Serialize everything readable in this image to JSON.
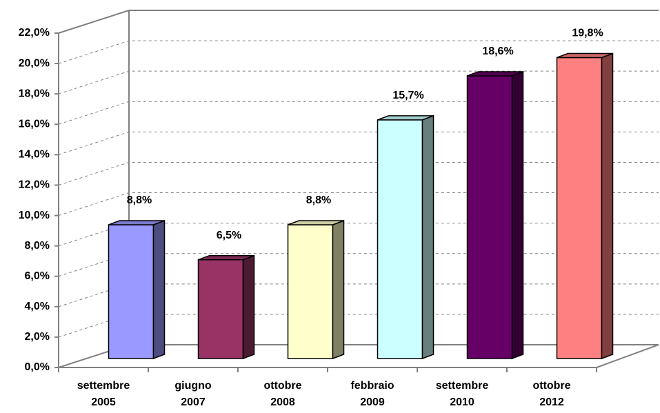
{
  "chart_data": {
    "type": "bar3d",
    "categories": [
      "settembre 2005",
      "giugno 2007",
      "ottobre 2008",
      "febbraio 2009",
      "settembre 2010",
      "ottobre 2012"
    ],
    "values": [
      8.8,
      6.5,
      8.8,
      15.7,
      18.6,
      19.8
    ],
    "value_labels": [
      "8,8%",
      "6,5%",
      "8,8%",
      "15,7%",
      "18,6%",
      "19,8%"
    ],
    "colors": [
      "#9999ff",
      "#993366",
      "#ffffcc",
      "#ccffff",
      "#660066",
      "#ff8080"
    ],
    "ylim": [
      0,
      22
    ],
    "yticks": [
      {
        "value": 0,
        "label": "0,0%"
      },
      {
        "value": 2,
        "label": "2,0%"
      },
      {
        "value": 4,
        "label": "4,0%"
      },
      {
        "value": 6,
        "label": "6,0%"
      },
      {
        "value": 8,
        "label": "8,0%"
      },
      {
        "value": 10,
        "label": "10,0%"
      },
      {
        "value": 12,
        "label": "12,0%"
      },
      {
        "value": 14,
        "label": "14,0%"
      },
      {
        "value": 16,
        "label": "16,0%"
      },
      {
        "value": 18,
        "label": "18,0%"
      },
      {
        "value": 20,
        "label": "20,0%"
      },
      {
        "value": 22,
        "label": "22,0%"
      }
    ],
    "grid": true
  }
}
